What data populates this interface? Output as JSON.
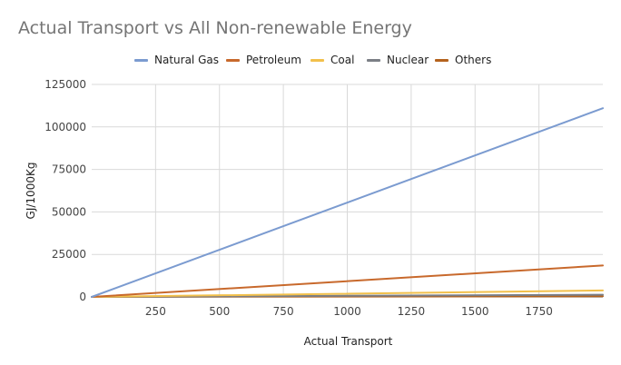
{
  "chart_data": {
    "type": "line",
    "title": "Actual Transport vs All Non-renewable Energy",
    "xlabel": "Actual Transport",
    "ylabel": "GJ/1000Kg",
    "xlim": [
      0,
      2000
    ],
    "ylim": [
      0,
      125000
    ],
    "x_ticks": [
      "250",
      "500",
      "750",
      "1000",
      "1250",
      "1500",
      "1750"
    ],
    "y_ticks": [
      "0",
      "25000",
      "50000",
      "75000",
      "100000",
      "125000"
    ],
    "grid": true,
    "legend_position": "top",
    "x": [
      0,
      2000
    ],
    "series": [
      {
        "name": "Natural Gas",
        "color": "#7b9bd0",
        "values": [
          0,
          111000
        ]
      },
      {
        "name": "Petroleum",
        "color": "#c8692c",
        "values": [
          0,
          18500
        ]
      },
      {
        "name": "Coal",
        "color": "#f2c04b",
        "values": [
          0,
          3800
        ]
      },
      {
        "name": "Nuclear",
        "color": "#7b7f86",
        "values": [
          0,
          1300
        ]
      },
      {
        "name": "Others",
        "color": "#b4621d",
        "values": [
          0,
          400
        ]
      }
    ]
  }
}
